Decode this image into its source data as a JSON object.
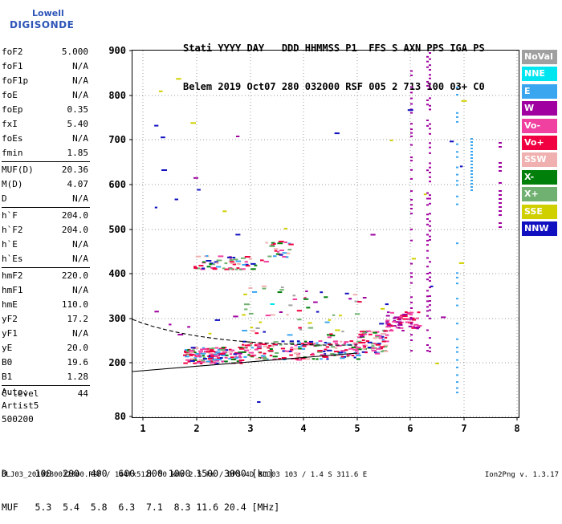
{
  "logo": {
    "line1": "Lowell",
    "line2": "DIGISONDE"
  },
  "header": {
    "row1": "Stati YYYY DAY   DDD HHMMSS P1  FFS S AXN PPS IGA PS",
    "row2": "Belem 2019 Oct07 280 032000 RSF 005 2 713 100 03+ C0"
  },
  "params": [
    {
      "k": "foF2",
      "v": "5.000"
    },
    {
      "k": "foF1",
      "v": "N/A"
    },
    {
      "k": "foF1p",
      "v": "N/A"
    },
    {
      "k": "foE",
      "v": "N/A"
    },
    {
      "k": "foEp",
      "v": "0.35"
    },
    {
      "k": "fxI",
      "v": "5.40"
    },
    {
      "k": "foEs",
      "v": "N/A"
    },
    {
      "k": "fmin",
      "v": "1.85"
    },
    {
      "k": "MUF(D)",
      "v": "20.36"
    },
    {
      "k": "M(D)",
      "v": "4.07"
    },
    {
      "k": "D",
      "v": "N/A"
    },
    {
      "k": "h`F",
      "v": "204.0"
    },
    {
      "k": "h`F2",
      "v": "204.0"
    },
    {
      "k": "h`E",
      "v": "N/A"
    },
    {
      "k": "h`Es",
      "v": "N/A"
    },
    {
      "k": "hmF2",
      "v": "220.0"
    },
    {
      "k": "hmF1",
      "v": "N/A"
    },
    {
      "k": "hmE",
      "v": "110.0"
    },
    {
      "k": "yF2",
      "v": "17.2"
    },
    {
      "k": "yF1",
      "v": "N/A"
    },
    {
      "k": "yE",
      "v": "20.0"
    },
    {
      "k": "B0",
      "v": "19.6"
    },
    {
      "k": "B1",
      "v": "1.28"
    },
    {
      "k": "C-level",
      "v": "44"
    }
  ],
  "auto": {
    "label": "Auto:",
    "artist": "Artist5",
    "code": "500200"
  },
  "y_ticks": [
    "900",
    "800",
    "700",
    "600",
    "500",
    "400",
    "300",
    "200",
    "80"
  ],
  "x_ticks": [
    "1",
    "2",
    "3",
    "4",
    "5",
    "6",
    "7",
    "8"
  ],
  "legend": [
    {
      "label": "NoVal",
      "color": "#a0a0a0"
    },
    {
      "label": "NNE",
      "color": "#00e6f0"
    },
    {
      "label": "E",
      "color": "#3aa6f0"
    },
    {
      "label": "W",
      "color": "#a000a0"
    },
    {
      "label": "Vo-",
      "color": "#f040a0"
    },
    {
      "label": "Vo+",
      "color": "#f00040"
    },
    {
      "label": "SSW",
      "color": "#f0b0b0"
    },
    {
      "label": "X-",
      "color": "#00800a"
    },
    {
      "label": "X+",
      "color": "#70b070"
    },
    {
      "label": "SSE",
      "color": "#d0d000"
    },
    {
      "label": "NNW",
      "color": "#1010c0"
    }
  ],
  "footer": {
    "row1": "D     100  200  400  600  800 1000 1500 3000 [km]",
    "row2": "MUF   5.3  5.4  5.8  6.3  7.1  8.3 11.6 20.4 [MHz]"
  },
  "bottom": {
    "left": "BLJ03_2019280032000.RSF / 144fx512h 50 kHz 2.5 km / DPS-4D BLJ03 103 / 1.4 S 311.6 E",
    "right": "Ion2Png v. 1.3.17"
  }
}
